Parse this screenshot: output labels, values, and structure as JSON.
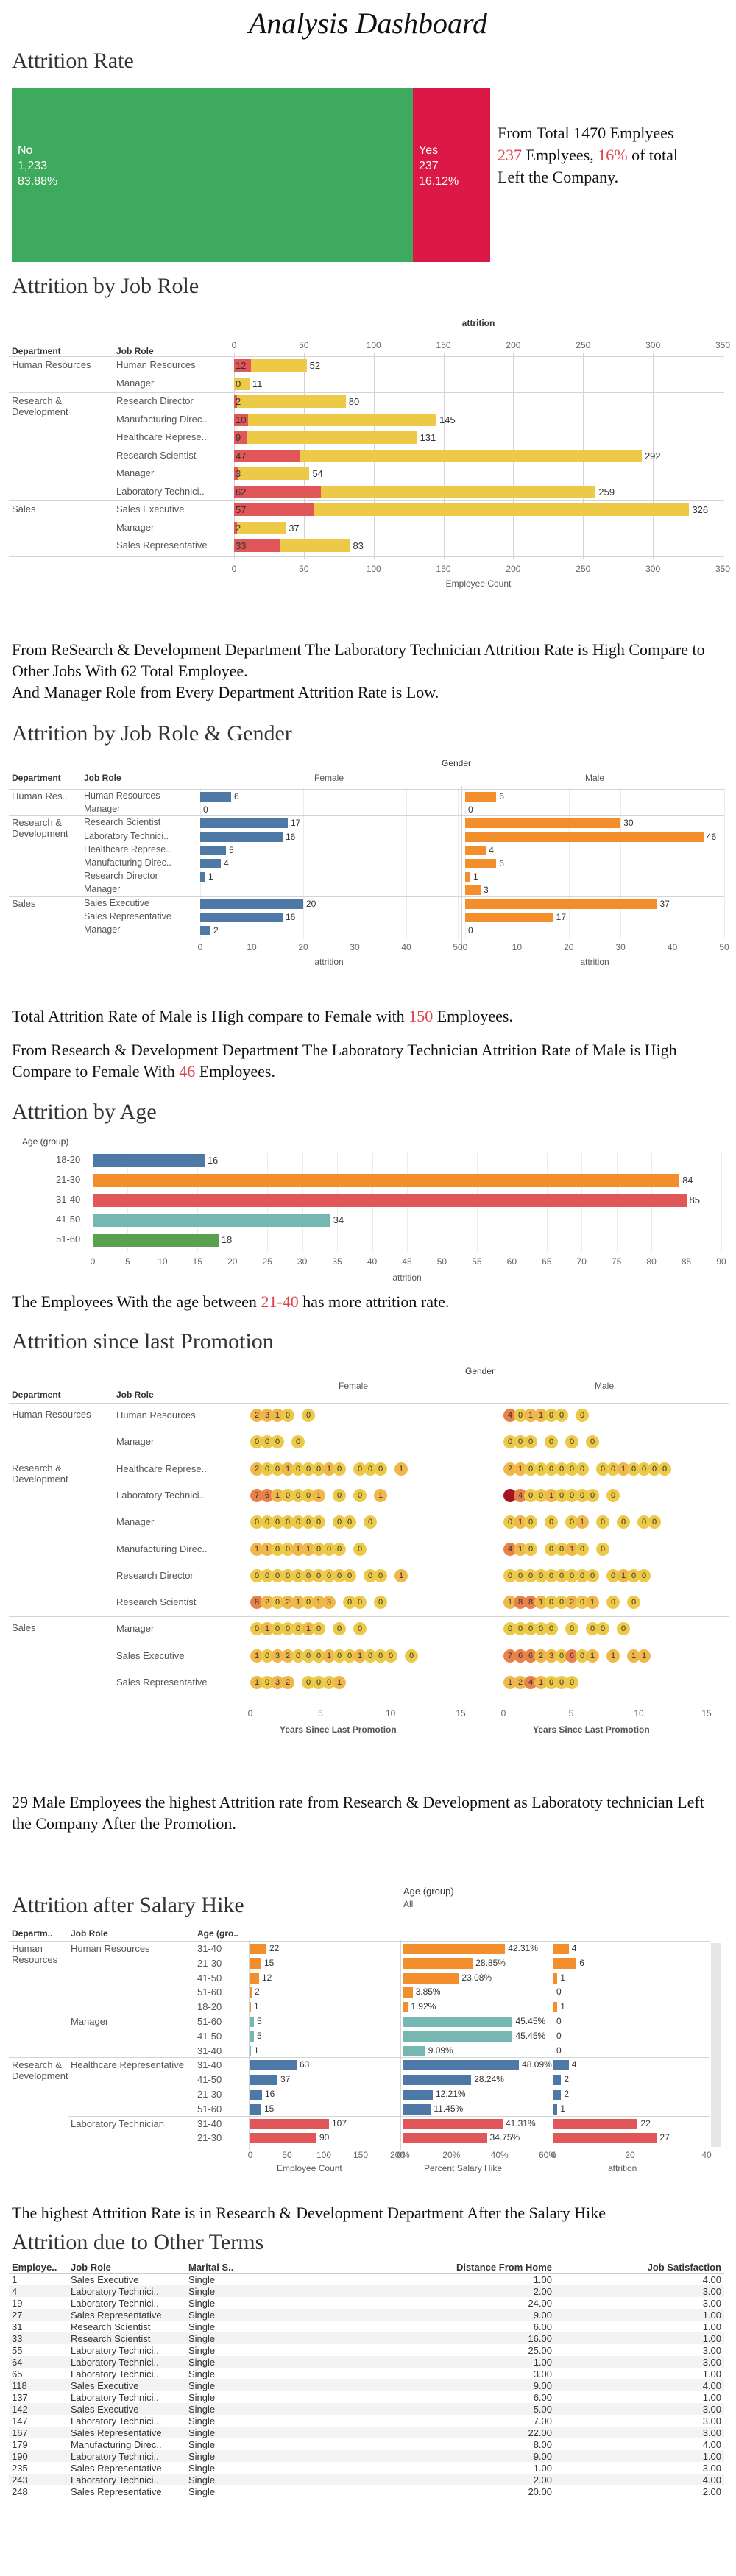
{
  "title": "Analysis Dashboard",
  "colors": {
    "blue": "#4e79a7",
    "orange": "#f28e2b",
    "red": "#e15759",
    "teal": "#76b7b2",
    "yellow": "#edc948",
    "green": "#3daa5e",
    "crimson": "#dc1846"
  },
  "attrition_rate": {
    "title": "Attrition Rate",
    "no": {
      "label": "No",
      "count": "1,233",
      "pct": "83.88%"
    },
    "yes": {
      "label": "Yes",
      "count": "237",
      "pct": "16.12%"
    },
    "text_a": "From Total 1470 Emplyees",
    "text_b1": "237",
    "text_b2": " Emplyees, ",
    "text_b3": "16%",
    "text_b4": " of total",
    "text_c": "Left the Company."
  },
  "job_role": {
    "title": "Attrition by Job Role",
    "top_header": "attrition",
    "col_dept": "Department",
    "col_role": "Job Role",
    "axis_title": "Employee Count",
    "ticks": [
      "0",
      "50",
      "100",
      "150",
      "200",
      "250",
      "300",
      "350"
    ],
    "depts": [
      "Human Resources",
      "Research & Development",
      "Sales"
    ],
    "rows": [
      {
        "role": "Human Resources",
        "attr": 12,
        "total": 52,
        "attr_label": "12",
        "total_label": "52"
      },
      {
        "role": "Manager",
        "attr": 0,
        "total": 11,
        "attr_label": "0",
        "total_label": "11"
      },
      {
        "role": "Research Director",
        "attr": 2,
        "total": 80,
        "attr_label": "2",
        "total_label": "80"
      },
      {
        "role": "Manufacturing Direc..",
        "attr": 10,
        "total": 145,
        "attr_label": "10",
        "total_label": "145"
      },
      {
        "role": "Healthcare Represe..",
        "attr": 9,
        "total": 131,
        "attr_label": "9",
        "total_label": "131"
      },
      {
        "role": "Research Scientist",
        "attr": 47,
        "total": 292,
        "attr_label": "47",
        "total_label": "292"
      },
      {
        "role": "Manager",
        "attr": 3,
        "total": 54,
        "attr_label": "3",
        "total_label": "54"
      },
      {
        "role": "Laboratory Technici..",
        "attr": 62,
        "total": 259,
        "attr_label": "62",
        "total_label": "259"
      },
      {
        "role": "Sales Executive",
        "attr": 57,
        "total": 326,
        "attr_label": "57",
        "total_label": "326"
      },
      {
        "role": "Manager",
        "attr": 2,
        "total": 37,
        "attr_label": "2",
        "total_label": "37"
      },
      {
        "role": "Sales Representative",
        "attr": 33,
        "total": 83,
        "attr_label": "33",
        "total_label": "83"
      }
    ],
    "text1": "From ReSearch & Development Department The Laboratory Technician Attrition Rate is High Compare to Other Jobs With 62 Total Employee.",
    "text2": "And Manager Role from Every Department Attrition Rate is Low."
  },
  "gender": {
    "title": "Attrition by Job Role & Gender",
    "top_header": "Gender",
    "female": "Female",
    "male": "Male",
    "col_dept": "Department",
    "col_role": "Job Role",
    "axis_title": "attrition",
    "ticks": [
      "0",
      "10",
      "20",
      "30",
      "40",
      "50"
    ],
    "depts": [
      "Human Res..",
      "Research & Development",
      "Sales"
    ],
    "rows": [
      {
        "role": "Human Resources",
        "f": 6,
        "m": 6,
        "fl": "6",
        "ml": "6"
      },
      {
        "role": "Manager",
        "f": 0,
        "m": 0,
        "fl": "0",
        "ml": "0"
      },
      {
        "role": "Research Scientist",
        "f": 17,
        "m": 30,
        "fl": "17",
        "ml": "30"
      },
      {
        "role": "Laboratory Technici..",
        "f": 16,
        "m": 46,
        "fl": "16",
        "ml": "46"
      },
      {
        "role": "Healthcare Represe..",
        "f": 5,
        "m": 4,
        "fl": "5",
        "ml": "4"
      },
      {
        "role": "Manufacturing Direc..",
        "f": 4,
        "m": 6,
        "fl": "4",
        "ml": "6"
      },
      {
        "role": "Research Director",
        "f": 1,
        "m": 1,
        "fl": "1",
        "ml": "1"
      },
      {
        "role": "Manager",
        "f": 0,
        "m": 3,
        "fl": "",
        "ml": "3"
      },
      {
        "role": "Sales Executive",
        "f": 20,
        "m": 37,
        "fl": "20",
        "ml": "37"
      },
      {
        "role": "Sales Representative",
        "f": 16,
        "m": 17,
        "fl": "16",
        "ml": "17"
      },
      {
        "role": "Manager",
        "f": 2,
        "m": 0,
        "fl": "2",
        "ml": "0"
      }
    ],
    "text1a": "Total Attrition Rate of Male is High compare to Female with ",
    "text1b": "150",
    "text1c": " Employees.",
    "text2a": "From Research & Development Department The Laboratory Technician Attrition Rate of Male is High Compare to Female With ",
    "text2b": "46",
    "text2c": " Employees."
  },
  "age": {
    "title": "Attrition by Age",
    "header": "Age (group)",
    "axis_title": "attrition",
    "ticks": [
      "0",
      "5",
      "10",
      "15",
      "20",
      "25",
      "30",
      "35",
      "40",
      "45",
      "50",
      "55",
      "60",
      "65",
      "70",
      "75",
      "80",
      "85",
      "90"
    ],
    "rows": [
      {
        "group": "18-20",
        "value": 16,
        "label": "16",
        "color": "#4e79a7"
      },
      {
        "group": "21-30",
        "value": 84,
        "label": "84",
        "color": "#f28e2b"
      },
      {
        "group": "31-40",
        "value": 85,
        "label": "85",
        "color": "#e15759"
      },
      {
        "group": "41-50",
        "value": 34,
        "label": "34",
        "color": "#76b7b2"
      },
      {
        "group": "51-60",
        "value": 18,
        "label": "18",
        "color": "#59a14f"
      }
    ],
    "text_a": "The Employees With the age between ",
    "text_b": "21-40",
    "text_c": " has more attrition rate."
  },
  "promotion": {
    "title": "Attrition since last Promotion",
    "top_header": "Gender",
    "female": "Female",
    "male": "Male",
    "col_dept": "Department",
    "col_role": "Job Role",
    "axis_title": "Years Since Last Promotion",
    "ticks": [
      "0",
      "5",
      "10",
      "15"
    ],
    "depts": [
      "Human Resources",
      "Research & Development",
      "Sales"
    ],
    "rows": [
      {
        "role": "Human Resources",
        "f": "2310 0",
        "m": "401100 0"
      },
      {
        "role": "Manager",
        "f": "000 0",
        "m": "000 0 0 0"
      },
      {
        "role": "Healthcare Represe..",
        "f": "200100010 000 1",
        "m": "21000000 0010000"
      },
      {
        "role": "Laboratory Technici..",
        "f": "7610001 0 0 1",
        "m": "R40010000 0"
      },
      {
        "role": "Manager",
        "f": "0000000 00 0",
        "m": "010 0 01 0 0 00"
      },
      {
        "role": "Manufacturing Direc..",
        "f": "110011000 0",
        "m": "410 0010 0"
      },
      {
        "role": "Research Director",
        "f": "0000000000 00 1",
        "m": "000000000 0100"
      },
      {
        "role": "Research Scientist",
        "f": "82021013 00 0",
        "m": "188100201 0 0"
      },
      {
        "role": "Manager",
        "f": "0100010 0 0",
        "m": "00000 0 00 0"
      },
      {
        "role": "Sales Executive",
        "f": "10320001001000 0",
        "m": "766230601 1 11"
      },
      {
        "role": "Sales Representative",
        "f": "1032 0001",
        "m": "1241000"
      }
    ],
    "text": "29 Male Employees the highest Attrition rate from Research & Development as Laboratoty technician Left the Company After the Promotion."
  },
  "salary": {
    "title": "Attrition after Salary Hike",
    "filter_label": "Age (group)",
    "filter_value": "All",
    "col_dept": "Departm..",
    "col_role": "Job Role",
    "col_age": "Age (gro..",
    "axis1_title": "Employee Count",
    "axis2_title": "Percent Salary Hike",
    "axis3_title": "attrition",
    "ticks1": [
      "0",
      "50",
      "100",
      "150",
      "200"
    ],
    "ticks2": [
      "0%",
      "20%",
      "40%",
      "60%"
    ],
    "ticks3": [
      "0",
      "20",
      "40"
    ],
    "depts": [
      "Human Resources",
      "Research & Development"
    ],
    "roles": [
      "Human Resources",
      "Manager",
      "Healthcare Representative",
      "Laboratory Technician"
    ],
    "rows": [
      {
        "age": "31-40",
        "count": 22,
        "pct": 42.31,
        "pct_label": "42.31%",
        "attr": 4,
        "color": "#f28e2b"
      },
      {
        "age": "21-30",
        "count": 15,
        "pct": 28.85,
        "pct_label": "28.85%",
        "attr": 6,
        "color": "#f28e2b"
      },
      {
        "age": "41-50",
        "count": 12,
        "pct": 23.08,
        "pct_label": "23.08%",
        "attr": 1,
        "color": "#f28e2b"
      },
      {
        "age": "51-60",
        "count": 2,
        "pct": 3.85,
        "pct_label": "3.85%",
        "attr": 0,
        "color": "#f28e2b"
      },
      {
        "age": "18-20",
        "count": 1,
        "pct": 1.92,
        "pct_label": "1.92%",
        "attr": 1,
        "color": "#f28e2b"
      },
      {
        "age": "51-60",
        "count": 5,
        "pct": 45.45,
        "pct_label": "45.45%",
        "attr": 0,
        "color": "#76b7b2"
      },
      {
        "age": "41-50",
        "count": 5,
        "pct": 45.45,
        "pct_label": "45.45%",
        "attr": 0,
        "color": "#76b7b2"
      },
      {
        "age": "31-40",
        "count": 1,
        "pct": 9.09,
        "pct_label": "9.09%",
        "attr": 0,
        "color": "#76b7b2"
      },
      {
        "age": "31-40",
        "count": 63,
        "pct": 48.09,
        "pct_label": "48.09%",
        "attr": 4,
        "color": "#4e79a7"
      },
      {
        "age": "41-50",
        "count": 37,
        "pct": 28.24,
        "pct_label": "28.24%",
        "attr": 2,
        "color": "#4e79a7"
      },
      {
        "age": "21-30",
        "count": 16,
        "pct": 12.21,
        "pct_label": "12.21%",
        "attr": 2,
        "color": "#4e79a7"
      },
      {
        "age": "51-60",
        "count": 15,
        "pct": 11.45,
        "pct_label": "11.45%",
        "attr": 1,
        "color": "#4e79a7"
      },
      {
        "age": "31-40",
        "count": 107,
        "pct": 41.31,
        "pct_label": "41.31%",
        "attr": 22,
        "color": "#e15759"
      },
      {
        "age": "21-30",
        "count": 90,
        "pct": 34.75,
        "pct_label": "34.75%",
        "attr": 27,
        "color": "#e15759"
      }
    ],
    "text": "The highest Attrition Rate is in Research & Development Department After the Salary Hike"
  },
  "other_terms": {
    "title": "Attrition due to Other Terms",
    "headers": [
      "Employe..",
      "Job Role",
      "Marital S..",
      "Distance From Home",
      "Job Satisfaction"
    ],
    "rows": [
      [
        "1",
        "Sales Executive",
        "Single",
        "1.00",
        "4.00"
      ],
      [
        "4",
        "Laboratory Technici..",
        "Single",
        "2.00",
        "3.00"
      ],
      [
        "19",
        "Laboratory Technici..",
        "Single",
        "24.00",
        "3.00"
      ],
      [
        "27",
        "Sales Representative",
        "Single",
        "9.00",
        "1.00"
      ],
      [
        "31",
        "Research Scientist",
        "Single",
        "6.00",
        "1.00"
      ],
      [
        "33",
        "Research Scientist",
        "Single",
        "16.00",
        "1.00"
      ],
      [
        "55",
        "Laboratory Technici..",
        "Single",
        "25.00",
        "3.00"
      ],
      [
        "64",
        "Laboratory Technici..",
        "Single",
        "1.00",
        "3.00"
      ],
      [
        "65",
        "Laboratory Technici..",
        "Single",
        "3.00",
        "1.00"
      ],
      [
        "118",
        "Sales Executive",
        "Single",
        "9.00",
        "4.00"
      ],
      [
        "137",
        "Laboratory Technici..",
        "Single",
        "6.00",
        "1.00"
      ],
      [
        "142",
        "Sales Executive",
        "Single",
        "5.00",
        "3.00"
      ],
      [
        "147",
        "Laboratory Technici..",
        "Single",
        "7.00",
        "3.00"
      ],
      [
        "167",
        "Sales Representative",
        "Single",
        "22.00",
        "3.00"
      ],
      [
        "179",
        "Manufacturing Direc..",
        "Single",
        "8.00",
        "4.00"
      ],
      [
        "190",
        "Laboratory Technici..",
        "Single",
        "9.00",
        "1.00"
      ],
      [
        "235",
        "Sales Representative",
        "Single",
        "1.00",
        "3.00"
      ],
      [
        "243",
        "Laboratory Technici..",
        "Single",
        "2.00",
        "4.00"
      ],
      [
        "248",
        "Sales Representative",
        "Single",
        "20.00",
        "2.00"
      ]
    ]
  }
}
